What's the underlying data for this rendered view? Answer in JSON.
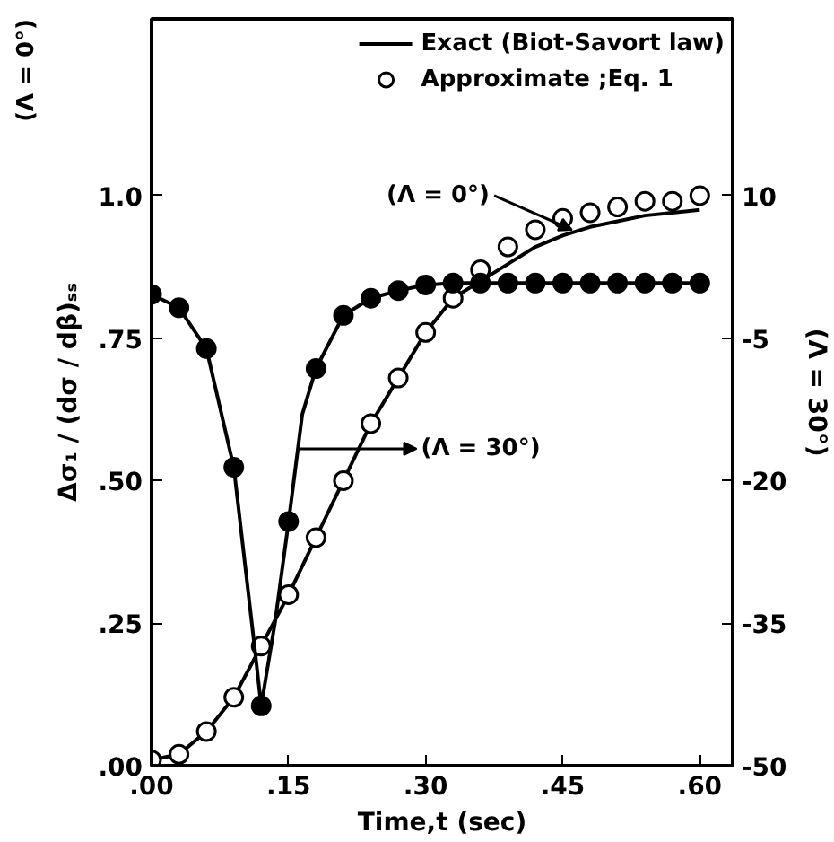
{
  "chart_data": {
    "type": "line",
    "xlabel": "Time,t (sec)",
    "ylabel": "Δσ₁ / (dσ / dβ)ₛₛ",
    "y2label": "(Λ = 30°)",
    "xlim": [
      0,
      0.636
    ],
    "ylim": [
      0,
      1.31
    ],
    "y2lim": [
      -50,
      28.6
    ],
    "xticks": [
      {
        "value": 0,
        "label": ".00"
      },
      {
        "value": 0.15,
        "label": ".15"
      },
      {
        "value": 0.3,
        "label": ".30"
      },
      {
        "value": 0.45,
        "label": ".45"
      },
      {
        "value": 0.6,
        "label": ".60"
      }
    ],
    "yticks": [
      {
        "value": 0,
        "label": ".00"
      },
      {
        "value": 0.25,
        "label": ".25"
      },
      {
        "value": 0.5,
        "label": ".50"
      },
      {
        "value": 0.75,
        "label": ".75"
      },
      {
        "value": 1.0,
        "label": "1.0"
      }
    ],
    "y2ticks": [
      -50,
      -35,
      -20,
      -5,
      10
    ],
    "legend": "top right",
    "grid": false,
    "annotations": [
      "(Λ = 0°)",
      {
        "text": "(Λ = 0°)",
        "x": 0.46,
        "y": 0.94
      },
      {
        "text": "(Λ = 30°)",
        "x": 0.16,
        "y": 0.556
      }
    ],
    "series": [
      {
        "name": "Exact (Biot-Savort law)",
        "color": "#000000",
        "x": [
          0,
          0.03,
          0.06,
          0.09,
          0.12,
          0.15,
          0.18,
          0.21,
          0.24,
          0.27,
          0.3,
          0.33,
          0.36,
          0.39,
          0.42,
          0.45,
          0.48,
          0.51,
          0.54,
          0.57,
          0.6
        ],
        "values": [
          0.01,
          0.02,
          0.06,
          0.12,
          0.21,
          0.3,
          0.4,
          0.5,
          0.6,
          0.68,
          0.76,
          0.82,
          0.85,
          0.88,
          0.91,
          0.93,
          0.945,
          0.955,
          0.965,
          0.97,
          0.975
        ]
      },
      {
        "name": "Approximate ;Eq. 1",
        "type": "scatter",
        "marker": "circle",
        "color": "#ffffff",
        "x": [
          0,
          0.03,
          0.06,
          0.09,
          0.12,
          0.15,
          0.18,
          0.21,
          0.24,
          0.27,
          0.3,
          0.33,
          0.36,
          0.39,
          0.42,
          0.45,
          0.48,
          0.51,
          0.54,
          0.57,
          0.6
        ],
        "values": [
          0.01,
          0.02,
          0.06,
          0.12,
          0.21,
          0.3,
          0.4,
          0.5,
          0.6,
          0.68,
          0.76,
          0.82,
          0.87,
          0.91,
          0.94,
          0.96,
          0.97,
          0.98,
          0.99,
          0.99,
          1.0
        ]
      },
      {
        "axis": "y2",
        "color": "#000000",
        "x": [
          0,
          0.03,
          0.06,
          0.09,
          0.112,
          0.12,
          0.135,
          0.15,
          0.165,
          0.18,
          0.21,
          0.24,
          0.27,
          0.3,
          0.33,
          0.6
        ],
        "values": [
          -0.4,
          -1.8,
          -6.1,
          -18.6,
          -36.9,
          -43.7,
          -35,
          -24.3,
          -13,
          -8.2,
          -2.6,
          -0.8,
          0,
          0.6,
          0.8,
          0.8
        ]
      },
      {
        "type": "scatter",
        "marker": "circle",
        "axis": "y2",
        "color": "#000000",
        "x": [
          0,
          0.03,
          0.06,
          0.09,
          0.12,
          0.15,
          0.18,
          0.21,
          0.24,
          0.27,
          0.3,
          0.33,
          0.36,
          0.39,
          0.42,
          0.45,
          0.48,
          0.51,
          0.54,
          0.57,
          0.6
        ],
        "values": [
          -0.4,
          -1.8,
          -6.1,
          -18.6,
          -43.7,
          -24.3,
          -8.2,
          -2.6,
          -0.8,
          0,
          0.6,
          0.8,
          0.8,
          0.8,
          0.8,
          0.8,
          0.8,
          0.8,
          0.8,
          0.8,
          0.8
        ]
      }
    ]
  }
}
